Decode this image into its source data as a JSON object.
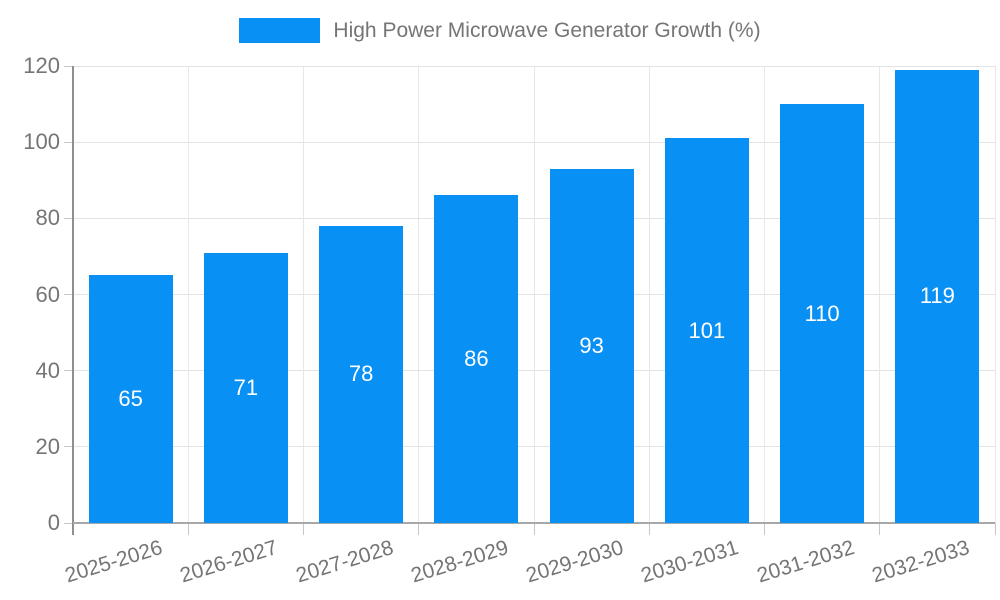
{
  "chart_data": {
    "type": "bar",
    "title": "High Power Microwave Generator Growth (%)",
    "categories": [
      "2025-2026",
      "2026-2027",
      "2027-2028",
      "2028-2029",
      "2029-2030",
      "2030-2031",
      "2031-2032",
      "2032-2033"
    ],
    "values": [
      65,
      71,
      78,
      86,
      93,
      101,
      110,
      119
    ],
    "value_labels": [
      "65",
      "71",
      "78",
      "86",
      "93",
      "101",
      "110",
      "119"
    ],
    "xlabel": "",
    "ylabel": "",
    "ylim": [
      0,
      120
    ],
    "yticks": [
      0,
      20,
      40,
      60,
      80,
      100,
      120
    ],
    "ytick_labels": [
      "0",
      "20",
      "40",
      "60",
      "80",
      "100",
      "120"
    ],
    "grid": "on",
    "legend_position": "top-center",
    "bar_label_position": "inside-center",
    "colors": {
      "bar": "#0890f5",
      "bar_label": "#ffffff",
      "tick_text": "#757575",
      "legend_text": "#757575",
      "gridline": "#e3e3e3",
      "y_axis": "#8f8f8f",
      "x_axis": "#a8a8a8",
      "background": "#ffffff"
    }
  }
}
